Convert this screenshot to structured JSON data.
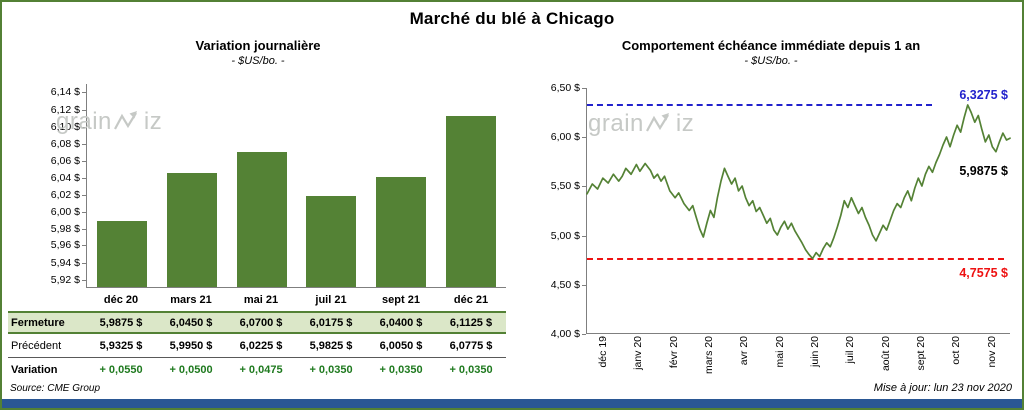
{
  "page": {
    "title": "Marché du blé à Chicago",
    "source": "Source: CME Group",
    "updated": "Mise à jour: lun 23 nov 2020"
  },
  "watermark": {
    "pre": "grain",
    "post": "iz"
  },
  "theme": {
    "green": "#538135",
    "bar": "#548235",
    "line": "#548235",
    "rowbg": "#dbe7c8",
    "vargreen": "#1f7a1f",
    "blue": "#2222cc",
    "red": "#ee1111",
    "footer": "#2a5794",
    "wm": "#c6c9c6",
    "axis": "#7f7f7f"
  },
  "table": {
    "rows": [
      {
        "label": "Fermeture",
        "values": [
          "5,9875 $",
          "6,0450 $",
          "6,0700 $",
          "6,0175 $",
          "6,0400 $",
          "6,1125 $"
        ]
      },
      {
        "label": "Précédent",
        "values": [
          "5,9325 $",
          "5,9950 $",
          "6,0225 $",
          "5,9825 $",
          "6,0050 $",
          "6,0775 $"
        ]
      },
      {
        "label": "Variation",
        "values": [
          "+ 0,0550",
          "+ 0,0500",
          "+ 0,0475",
          "+ 0,0350",
          "+ 0,0350",
          "+ 0,0350"
        ]
      }
    ]
  },
  "chart_data": [
    {
      "type": "bar",
      "title": "Variation  journalière",
      "subtitle": "- $US/bo. -",
      "categories": [
        "déc 20",
        "mars 21",
        "mai 21",
        "juil 21",
        "sept 21",
        "déc 21"
      ],
      "values": [
        5.9875,
        6.045,
        6.07,
        6.0175,
        6.04,
        6.1125
      ],
      "ylim": [
        5.91,
        6.15
      ],
      "grid": false,
      "y_ticks": [
        {
          "value": 6.14,
          "label": "6,14 $"
        },
        {
          "value": 6.12,
          "label": "6,12 $"
        },
        {
          "value": 6.1,
          "label": "6,10 $"
        },
        {
          "value": 6.08,
          "label": "6,08 $"
        },
        {
          "value": 6.06,
          "label": "6,06 $"
        },
        {
          "value": 6.04,
          "label": "6,04 $"
        },
        {
          "value": 6.02,
          "label": "6,02 $"
        },
        {
          "value": 6.0,
          "label": "6,00 $"
        },
        {
          "value": 5.98,
          "label": "5,98 $"
        },
        {
          "value": 5.96,
          "label": "5,96 $"
        },
        {
          "value": 5.94,
          "label": "5,94 $"
        },
        {
          "value": 5.92,
          "label": "5,92 $"
        }
      ]
    },
    {
      "type": "line",
      "title": "Comportement  échéance  immédiate depuis 1 an",
      "subtitle": "- $US/bo. -",
      "xlim": [
        0,
        12
      ],
      "ylim": [
        4.0,
        6.5
      ],
      "grid": false,
      "y_ticks": [
        {
          "value": 6.5,
          "label": "6,50 $"
        },
        {
          "value": 6.0,
          "label": "6,00 $"
        },
        {
          "value": 5.5,
          "label": "5,50 $"
        },
        {
          "value": 5.0,
          "label": "5,00 $"
        },
        {
          "value": 4.5,
          "label": "4,50 $"
        },
        {
          "value": 4.0,
          "label": "4,00 $"
        }
      ],
      "x_ticks": [
        "déc 19",
        "janv 20",
        "févr 20",
        "mars 20",
        "avr 20",
        "mai 20",
        "juin 20",
        "juil 20",
        "août 20",
        "sept 20",
        "oct 20",
        "nov 20"
      ],
      "high": {
        "value": 6.3275,
        "label": "6,3275 $"
      },
      "low": {
        "value": 4.7575,
        "label": "4,7575 $"
      },
      "last": {
        "value": 5.9875,
        "label": "5,9875 $"
      },
      "series": [
        [
          0,
          5.42
        ],
        [
          0.15,
          5.52
        ],
        [
          0.3,
          5.47
        ],
        [
          0.45,
          5.58
        ],
        [
          0.6,
          5.53
        ],
        [
          0.75,
          5.62
        ],
        [
          0.9,
          5.55
        ],
        [
          1,
          5.6
        ],
        [
          1.1,
          5.68
        ],
        [
          1.25,
          5.62
        ],
        [
          1.4,
          5.72
        ],
        [
          1.5,
          5.65
        ],
        [
          1.65,
          5.73
        ],
        [
          1.8,
          5.66
        ],
        [
          1.9,
          5.58
        ],
        [
          2,
          5.62
        ],
        [
          2.1,
          5.55
        ],
        [
          2.2,
          5.6
        ],
        [
          2.35,
          5.45
        ],
        [
          2.5,
          5.38
        ],
        [
          2.6,
          5.43
        ],
        [
          2.75,
          5.32
        ],
        [
          2.9,
          5.25
        ],
        [
          3,
          5.3
        ],
        [
          3.1,
          5.18
        ],
        [
          3.2,
          5.06
        ],
        [
          3.3,
          4.98
        ],
        [
          3.4,
          5.12
        ],
        [
          3.5,
          5.25
        ],
        [
          3.6,
          5.18
        ],
        [
          3.7,
          5.38
        ],
        [
          3.8,
          5.55
        ],
        [
          3.9,
          5.68
        ],
        [
          4,
          5.6
        ],
        [
          4.1,
          5.52
        ],
        [
          4.2,
          5.58
        ],
        [
          4.3,
          5.45
        ],
        [
          4.4,
          5.5
        ],
        [
          4.5,
          5.38
        ],
        [
          4.6,
          5.3
        ],
        [
          4.7,
          5.35
        ],
        [
          4.8,
          5.24
        ],
        [
          4.9,
          5.28
        ],
        [
          5,
          5.2
        ],
        [
          5.1,
          5.12
        ],
        [
          5.2,
          5.17
        ],
        [
          5.3,
          5.05
        ],
        [
          5.4,
          5.0
        ],
        [
          5.5,
          5.08
        ],
        [
          5.6,
          5.14
        ],
        [
          5.7,
          5.06
        ],
        [
          5.8,
          5.12
        ],
        [
          5.9,
          5.04
        ],
        [
          6,
          4.98
        ],
        [
          6.1,
          4.92
        ],
        [
          6.2,
          4.85
        ],
        [
          6.3,
          4.8
        ],
        [
          6.4,
          4.76
        ],
        [
          6.5,
          4.82
        ],
        [
          6.6,
          4.78
        ],
        [
          6.7,
          4.86
        ],
        [
          6.8,
          4.92
        ],
        [
          6.9,
          4.88
        ],
        [
          7,
          4.97
        ],
        [
          7.1,
          5.08
        ],
        [
          7.2,
          5.2
        ],
        [
          7.3,
          5.35
        ],
        [
          7.4,
          5.28
        ],
        [
          7.5,
          5.38
        ],
        [
          7.6,
          5.3
        ],
        [
          7.7,
          5.22
        ],
        [
          7.8,
          5.28
        ],
        [
          7.9,
          5.18
        ],
        [
          8,
          5.1
        ],
        [
          8.1,
          5.0
        ],
        [
          8.2,
          4.94
        ],
        [
          8.3,
          5.02
        ],
        [
          8.4,
          5.1
        ],
        [
          8.5,
          5.05
        ],
        [
          8.6,
          5.15
        ],
        [
          8.7,
          5.25
        ],
        [
          8.8,
          5.32
        ],
        [
          8.9,
          5.28
        ],
        [
          9,
          5.38
        ],
        [
          9.1,
          5.45
        ],
        [
          9.2,
          5.35
        ],
        [
          9.3,
          5.48
        ],
        [
          9.4,
          5.58
        ],
        [
          9.5,
          5.5
        ],
        [
          9.6,
          5.62
        ],
        [
          9.7,
          5.7
        ],
        [
          9.8,
          5.64
        ],
        [
          9.9,
          5.74
        ],
        [
          10,
          5.82
        ],
        [
          10.1,
          5.92
        ],
        [
          10.2,
          6.0
        ],
        [
          10.3,
          5.9
        ],
        [
          10.4,
          6.02
        ],
        [
          10.5,
          6.12
        ],
        [
          10.6,
          6.05
        ],
        [
          10.7,
          6.2
        ],
        [
          10.8,
          6.3275
        ],
        [
          10.9,
          6.25
        ],
        [
          11,
          6.15
        ],
        [
          11.1,
          6.22
        ],
        [
          11.2,
          6.08
        ],
        [
          11.3,
          5.95
        ],
        [
          11.4,
          6.02
        ],
        [
          11.5,
          5.9
        ],
        [
          11.6,
          5.85
        ],
        [
          11.7,
          5.95
        ],
        [
          11.8,
          6.04
        ],
        [
          11.9,
          5.97
        ],
        [
          12,
          5.9875
        ]
      ]
    }
  ]
}
